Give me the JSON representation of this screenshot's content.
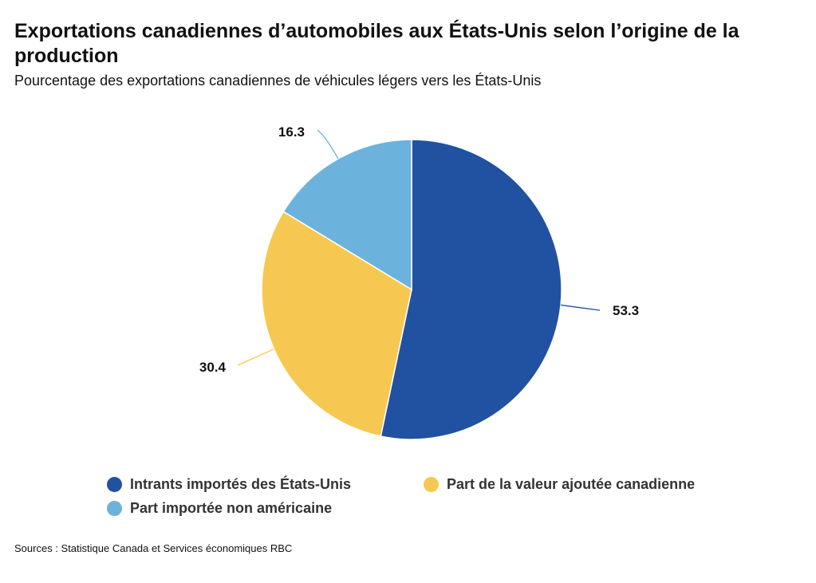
{
  "title": "Exportations canadiennes d’automobiles aux États-Unis selon l’origine de la production",
  "subtitle": "Pourcentage des exportations canadiennes de véhicules légers vers les États-Unis",
  "source": "Sources : Statistique Canada et Services économiques RBC",
  "chart_data": {
    "type": "pie",
    "title": "Exportations canadiennes d’automobiles aux États-Unis selon l’origine de la production",
    "subtitle": "Pourcentage des exportations canadiennes de véhicules légers vers les États-Unis",
    "slices": [
      {
        "label": "Intrants importés des États-Unis",
        "value": 53.3,
        "display": "53.3",
        "color": "#2151A1"
      },
      {
        "label": "Part de la valeur ajoutée canadienne",
        "value": 30.4,
        "display": "30.4",
        "color": "#F7C851"
      },
      {
        "label": "Part importée non américaine",
        "value": 16.3,
        "display": "16.3",
        "color": "#6BB3DC"
      }
    ],
    "start": "top",
    "direction": "clockwise",
    "legend_position": "bottom"
  }
}
